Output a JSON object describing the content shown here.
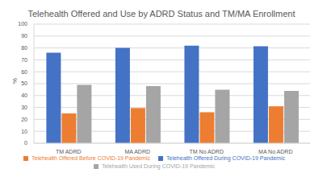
{
  "chart_data": {
    "type": "bar",
    "title": "Telehealth Offered and Use by ADRD Status and TM/MA Enrollment",
    "y_label": "%",
    "categories": [
      "TM ADRD",
      "MA ADRD",
      "TM No ADRD",
      "MA No ADRD"
    ],
    "series": [
      {
        "name": "Telehealth Offered During COVID-19 Pandemic",
        "color": "#4472c4",
        "values": [
          76,
          80,
          82,
          81.5
        ]
      },
      {
        "name": "Telehealth Offered Before COVID-19 Pandemic",
        "color": "#ed7d31",
        "values": [
          25,
          29.5,
          26,
          31
        ]
      },
      {
        "name": "Telehealth Used During COVID-19 Pandemic",
        "color": "#a5a5a5",
        "values": [
          49,
          48,
          45,
          44
        ]
      }
    ],
    "ylim": [
      0,
      100
    ],
    "yticks": [
      0,
      10,
      20,
      30,
      40,
      50,
      60,
      70,
      80,
      90,
      100
    ],
    "grid": true,
    "legend": "bottom"
  }
}
